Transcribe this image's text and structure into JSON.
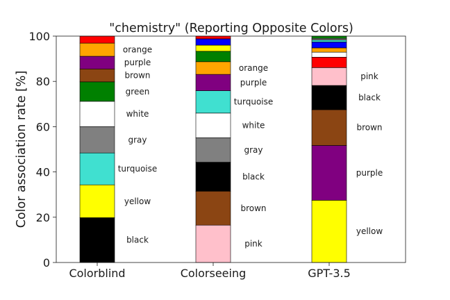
{
  "chart_data": {
    "type": "bar",
    "stacked": true,
    "title": "\"chemistry\" (Reporting Opposite Colors)",
    "xlabel": "",
    "ylabel": "Color association rate [%]",
    "ylim": [
      0,
      100
    ],
    "yticks": [
      0,
      20,
      40,
      60,
      80,
      100
    ],
    "grid": false,
    "categories": [
      "Colorblind",
      "Colorseeing",
      "GPT-3.5"
    ],
    "stacks": [
      {
        "category": "Colorblind",
        "segments": [
          {
            "color_name": "black",
            "value": 19.8,
            "label": "black",
            "fill": "#000000"
          },
          {
            "color_name": "yellow",
            "value": 14.5,
            "label": "yellow",
            "fill": "#ffff00"
          },
          {
            "color_name": "turquoise",
            "value": 14.1,
            "label": "turquoise",
            "fill": "#40e0d0"
          },
          {
            "color_name": "gray",
            "value": 11.6,
            "label": "gray",
            "fill": "#808080"
          },
          {
            "color_name": "white",
            "value": 11.2,
            "label": "white",
            "fill": "#ffffff"
          },
          {
            "color_name": "green",
            "value": 8.6,
            "label": "green",
            "fill": "#008000"
          },
          {
            "color_name": "brown",
            "value": 5.7,
            "label": "brown",
            "fill": "#8b4513"
          },
          {
            "color_name": "purple",
            "value": 5.6,
            "label": "purple",
            "fill": "#800080"
          },
          {
            "color_name": "orange",
            "value": 5.8,
            "label": "orange",
            "fill": "#ffa500"
          },
          {
            "color_name": "red",
            "value": 3.1,
            "label": "",
            "fill": "#ff0000"
          }
        ]
      },
      {
        "category": "Colorseeing",
        "segments": [
          {
            "color_name": "pink",
            "value": 16.5,
            "label": "pink",
            "fill": "#ffc0cb"
          },
          {
            "color_name": "brown",
            "value": 15.0,
            "label": "brown",
            "fill": "#8b4513"
          },
          {
            "color_name": "black",
            "value": 12.8,
            "label": "black",
            "fill": "#000000"
          },
          {
            "color_name": "gray",
            "value": 10.8,
            "label": "gray",
            "fill": "#808080"
          },
          {
            "color_name": "white",
            "value": 10.9,
            "label": "white",
            "fill": "#ffffff"
          },
          {
            "color_name": "turquoise",
            "value": 9.9,
            "label": "turquoise",
            "fill": "#40e0d0"
          },
          {
            "color_name": "purple",
            "value": 7.2,
            "label": "purple",
            "fill": "#800080"
          },
          {
            "color_name": "orange",
            "value": 5.6,
            "label": "orange",
            "fill": "#ffa500"
          },
          {
            "color_name": "green",
            "value": 4.6,
            "label": "",
            "fill": "#008000"
          },
          {
            "color_name": "yellow",
            "value": 2.7,
            "label": "",
            "fill": "#ffff00"
          },
          {
            "color_name": "blue",
            "value": 2.8,
            "label": "",
            "fill": "#0000ff"
          },
          {
            "color_name": "red",
            "value": 1.2,
            "label": "",
            "fill": "#ff0000"
          }
        ]
      },
      {
        "category": "GPT-3.5",
        "segments": [
          {
            "color_name": "yellow",
            "value": 27.5,
            "label": "yellow",
            "fill": "#ffff00"
          },
          {
            "color_name": "purple",
            "value": 24.2,
            "label": "purple",
            "fill": "#800080"
          },
          {
            "color_name": "brown",
            "value": 15.8,
            "label": "brown",
            "fill": "#8b4513"
          },
          {
            "color_name": "black",
            "value": 10.7,
            "label": "black",
            "fill": "#000000"
          },
          {
            "color_name": "pink",
            "value": 7.9,
            "label": "pink",
            "fill": "#ffc0cb"
          },
          {
            "color_name": "red",
            "value": 4.6,
            "label": "",
            "fill": "#ff0000"
          },
          {
            "color_name": "white",
            "value": 2.2,
            "label": "",
            "fill": "#ffffff"
          },
          {
            "color_name": "orange",
            "value": 1.9,
            "label": "",
            "fill": "#ffa500"
          },
          {
            "color_name": "blue",
            "value": 2.6,
            "label": "",
            "fill": "#0000ff"
          },
          {
            "color_name": "turquoise",
            "value": 0.9,
            "label": "",
            "fill": "#40e0d0"
          },
          {
            "color_name": "gray",
            "value": 0.7,
            "label": "",
            "fill": "#808080"
          },
          {
            "color_name": "green",
            "value": 1.0,
            "label": "",
            "fill": "#008000"
          }
        ]
      }
    ]
  }
}
